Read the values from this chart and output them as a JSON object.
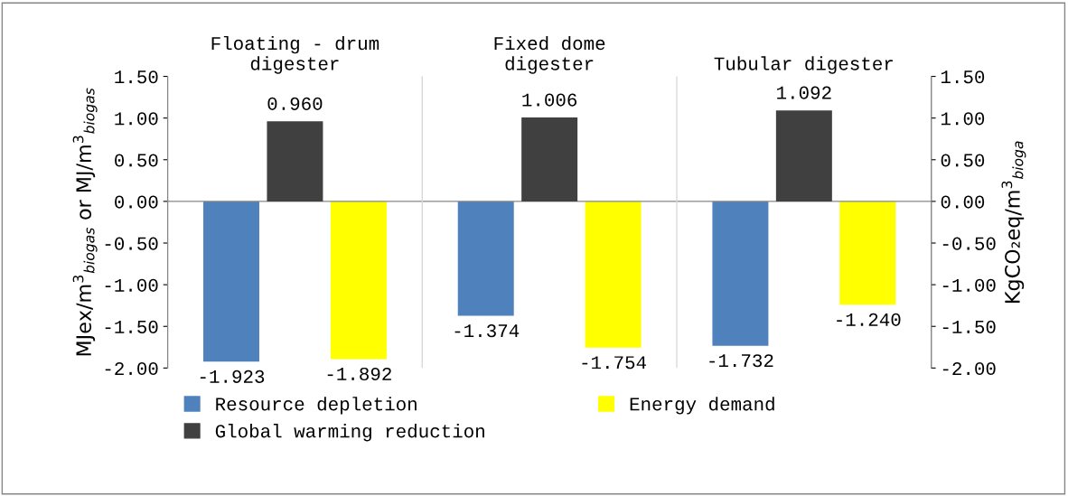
{
  "chart_data": {
    "type": "bar",
    "categories": [
      "Floating - drum\ndigester",
      "Fixed dome\ndigester",
      "Tubular digester"
    ],
    "ylabel": "MJex/m$^{3}$$_{biogas}$ or MJ/m$^{3}$$_{biogas}$",
    "y2label": "KgCO₂eq/m$^{3}$$_{bioga}$",
    "ylim": [
      -2.0,
      1.5
    ],
    "yticks": [
      {
        "value": -2.0,
        "label": "-2.00"
      },
      {
        "value": -1.5,
        "label": "-1.50"
      },
      {
        "value": -1.0,
        "label": "-1.00"
      },
      {
        "value": -0.5,
        "label": "-0.50"
      },
      {
        "value": 0.0,
        "label": "0.00"
      },
      {
        "value": 0.5,
        "label": "0.50"
      },
      {
        "value": 1.0,
        "label": "1.00"
      },
      {
        "value": 1.5,
        "label": "1.50"
      }
    ],
    "y2lim": [
      -2.0,
      1.5
    ],
    "y2ticks": [
      {
        "value": -2.0,
        "label": "-2.00"
      },
      {
        "value": -1.5,
        "label": "-1.50"
      },
      {
        "value": -1.0,
        "label": "-1.00"
      },
      {
        "value": -0.5,
        "label": "-0.50"
      },
      {
        "value": 0.0,
        "label": "0.00"
      },
      {
        "value": 0.5,
        "label": "0.50"
      },
      {
        "value": 1.0,
        "label": "1.00"
      },
      {
        "value": 1.5,
        "label": "1.50"
      }
    ],
    "series": [
      {
        "name": "Resource depletion",
        "color": "#4f81bd",
        "values": [
          -1.923,
          -1.374,
          -1.732
        ],
        "value_labels": [
          "-1.923",
          "-1.374",
          "-1.732"
        ]
      },
      {
        "name": "Global warming reduction",
        "color": "#404040",
        "axis": "y2",
        "values": [
          0.96,
          1.006,
          1.092
        ],
        "value_labels": [
          "0.960",
          "1.006",
          "1.092"
        ]
      },
      {
        "name": "Energy demand",
        "color": "#ffff00",
        "values": [
          -1.892,
          -1.754,
          -1.24
        ],
        "value_labels": [
          "-1.892",
          "-1.754",
          "-1.240"
        ]
      }
    ],
    "legend": "bottom",
    "grid": false
  }
}
